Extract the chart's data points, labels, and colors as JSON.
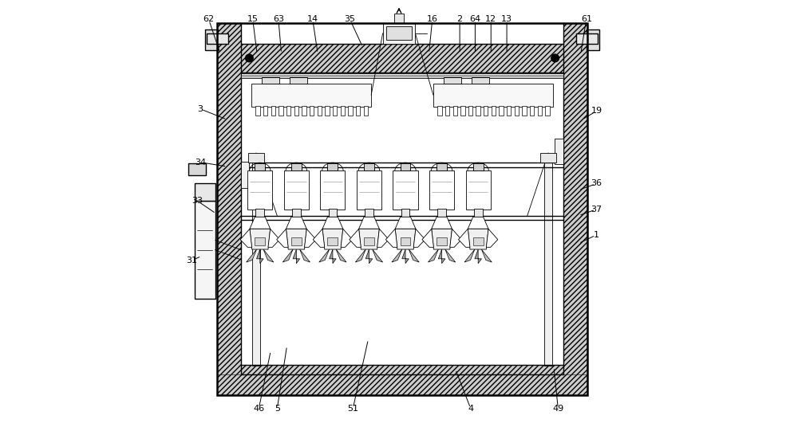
{
  "bg_color": "#ffffff",
  "line_color": "#000000",
  "fig_width": 10.0,
  "fig_height": 5.36,
  "label_positions": {
    "62": [
      0.055,
      0.955,
      0.082,
      0.875
    ],
    "15": [
      0.158,
      0.955,
      0.168,
      0.875
    ],
    "63": [
      0.218,
      0.955,
      0.225,
      0.875
    ],
    "14": [
      0.298,
      0.955,
      0.31,
      0.875
    ],
    "35": [
      0.385,
      0.955,
      0.415,
      0.89
    ],
    "16": [
      0.578,
      0.955,
      0.57,
      0.875
    ],
    "2": [
      0.642,
      0.955,
      0.642,
      0.875
    ],
    "64": [
      0.678,
      0.955,
      0.678,
      0.875
    ],
    "12": [
      0.715,
      0.955,
      0.715,
      0.875
    ],
    "13": [
      0.752,
      0.955,
      0.752,
      0.875
    ],
    "61": [
      0.938,
      0.955,
      0.925,
      0.875
    ],
    "3": [
      0.035,
      0.745,
      0.098,
      0.72
    ],
    "34": [
      0.035,
      0.62,
      0.098,
      0.61
    ],
    "33": [
      0.028,
      0.53,
      0.072,
      0.5
    ],
    "31": [
      0.015,
      0.39,
      0.038,
      0.4
    ],
    "19": [
      0.962,
      0.74,
      0.928,
      0.72
    ],
    "36": [
      0.962,
      0.57,
      0.92,
      0.555
    ],
    "37": [
      0.962,
      0.51,
      0.92,
      0.495
    ],
    "1": [
      0.962,
      0.45,
      0.92,
      0.43
    ],
    "46": [
      0.172,
      0.042,
      0.2,
      0.178
    ],
    "5": [
      0.215,
      0.042,
      0.238,
      0.19
    ],
    "51": [
      0.392,
      0.042,
      0.428,
      0.205
    ],
    "4": [
      0.668,
      0.042,
      0.632,
      0.135
    ],
    "49": [
      0.872,
      0.042,
      0.862,
      0.14
    ]
  }
}
